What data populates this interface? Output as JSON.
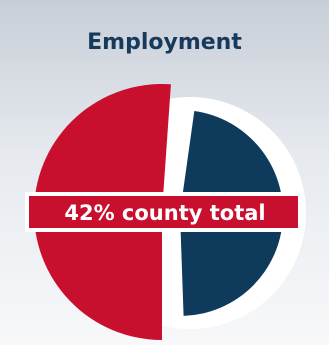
{
  "chart_data": {
    "type": "pie",
    "title": "Employment",
    "slices": [
      {
        "label": "county",
        "value": 42,
        "color": "#c8102e",
        "exploded": true
      },
      {
        "label": "",
        "value": 58,
        "color": "#0e3a5c",
        "exploded": false
      }
    ],
    "annotation": "42% county total"
  },
  "colors": {
    "title": "#163a5c",
    "banner": "#c8102e",
    "ring": "#ffffff"
  }
}
